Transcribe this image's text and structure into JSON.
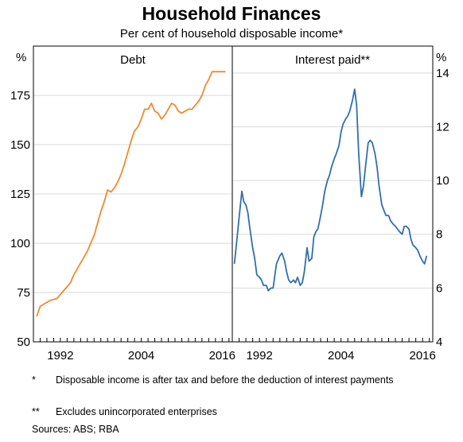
{
  "title": "Household Finances",
  "subtitle": "Per cent of household disposable income*",
  "chart_data": [
    {
      "type": "line",
      "title": "Debt",
      "ylabel": "%",
      "y_axis_side": "left",
      "ylim": [
        50,
        200
      ],
      "yticks": [
        50,
        75,
        100,
        125,
        150,
        175
      ],
      "xlim": [
        1988,
        2017.5
      ],
      "xticks": [
        1992,
        2004,
        2016
      ],
      "color": "#f08a30",
      "x": [
        1988.5,
        1989,
        1989.5,
        1990,
        1990.5,
        1991,
        1991.5,
        1992,
        1992.5,
        1993,
        1993.5,
        1994,
        1994.5,
        1995,
        1995.5,
        1996,
        1996.5,
        1997,
        1997.5,
        1998,
        1998.5,
        1999,
        1999.5,
        2000,
        2000.5,
        2001,
        2001.5,
        2002,
        2002.5,
        2003,
        2003.5,
        2004,
        2004.5,
        2005,
        2005.5,
        2006,
        2006.5,
        2007,
        2007.5,
        2008,
        2008.5,
        2009,
        2009.5,
        2010,
        2010.5,
        2011,
        2011.5,
        2012,
        2012.5,
        2013,
        2013.5,
        2014,
        2014.5,
        2015,
        2015.5,
        2016,
        2016.5
      ],
      "values": [
        63,
        68,
        69,
        70,
        71,
        71.5,
        72,
        74,
        76,
        78,
        80,
        84,
        87,
        90,
        93,
        96,
        100,
        104,
        110,
        116,
        121,
        127,
        126,
        128,
        131,
        135,
        140,
        146,
        152,
        157,
        159,
        163,
        168,
        168,
        171,
        167,
        166,
        163,
        165,
        168,
        171,
        170,
        167,
        166,
        167,
        168,
        168,
        170,
        172,
        175,
        180,
        183,
        187,
        187,
        187,
        187,
        187
      ]
    },
    {
      "type": "line",
      "title": "Interest paid**",
      "ylabel": "%",
      "y_axis_side": "right",
      "ylim": [
        4,
        15
      ],
      "yticks": [
        4,
        6,
        8,
        10,
        12,
        14
      ],
      "xlim": [
        1988,
        2017.5
      ],
      "xticks": [
        1992,
        2004,
        2016
      ],
      "color": "#2f6fb0",
      "x": [
        1988.3,
        1988.6,
        1989,
        1989.4,
        1989.7,
        1990,
        1990.3,
        1990.6,
        1991,
        1991.3,
        1991.6,
        1992,
        1992.3,
        1992.6,
        1993,
        1993.3,
        1993.7,
        1994,
        1994.5,
        1995,
        1995.3,
        1995.7,
        1996,
        1996.3,
        1996.6,
        1997,
        1997.3,
        1997.6,
        1998,
        1998.3,
        1998.6,
        1999,
        1999.3,
        1999.7,
        2000,
        2000.3,
        2000.6,
        2001,
        2001.3,
        2001.6,
        2002,
        2002.3,
        2002.6,
        2003,
        2003.3,
        2003.7,
        2004,
        2004.3,
        2004.7,
        2005,
        2005.3,
        2005.7,
        2006,
        2006.3,
        2006.6,
        2007,
        2007.3,
        2007.6,
        2008,
        2008.3,
        2008.6,
        2009,
        2009.3,
        2009.6,
        2010,
        2010.3,
        2010.6,
        2011,
        2011.3,
        2011.6,
        2012,
        2012.3,
        2012.6,
        2013,
        2013.3,
        2013.6,
        2014,
        2014.3,
        2014.6,
        2015,
        2015.3,
        2015.6,
        2016,
        2016.3,
        2016.6
      ],
      "values": [
        6.9,
        7.6,
        8.6,
        9.6,
        9.2,
        9.1,
        8.8,
        8.2,
        7.5,
        7.1,
        6.5,
        6.4,
        6.3,
        6.1,
        6.1,
        5.9,
        6.0,
        6.0,
        6.9,
        7.2,
        7.3,
        7.0,
        6.6,
        6.3,
        6.2,
        6.3,
        6.2,
        6.4,
        6.1,
        6.2,
        6.6,
        7.5,
        7.0,
        7.1,
        7.9,
        8.1,
        8.2,
        8.7,
        9.1,
        9.6,
        10.0,
        10.2,
        10.5,
        10.8,
        11.0,
        11.3,
        11.8,
        12.1,
        12.3,
        12.4,
        12.6,
        13.0,
        13.4,
        12.8,
        11.0,
        9.4,
        9.8,
        10.5,
        11.4,
        11.5,
        11.4,
        11.0,
        10.5,
        9.8,
        9.1,
        8.9,
        8.7,
        8.7,
        8.5,
        8.4,
        8.3,
        8.2,
        8.1,
        8.0,
        8.3,
        8.3,
        8.2,
        7.8,
        7.6,
        7.5,
        7.4,
        7.2,
        7.0,
        6.9,
        7.2
      ]
    }
  ],
  "notes": [
    {
      "mark": "*",
      "text": "Disposable income is after tax and before the deduction of interest payments"
    },
    {
      "mark": "**",
      "text": "Excludes unincorporated enterprises"
    }
  ],
  "sources": "Sources:   ABS; RBA"
}
